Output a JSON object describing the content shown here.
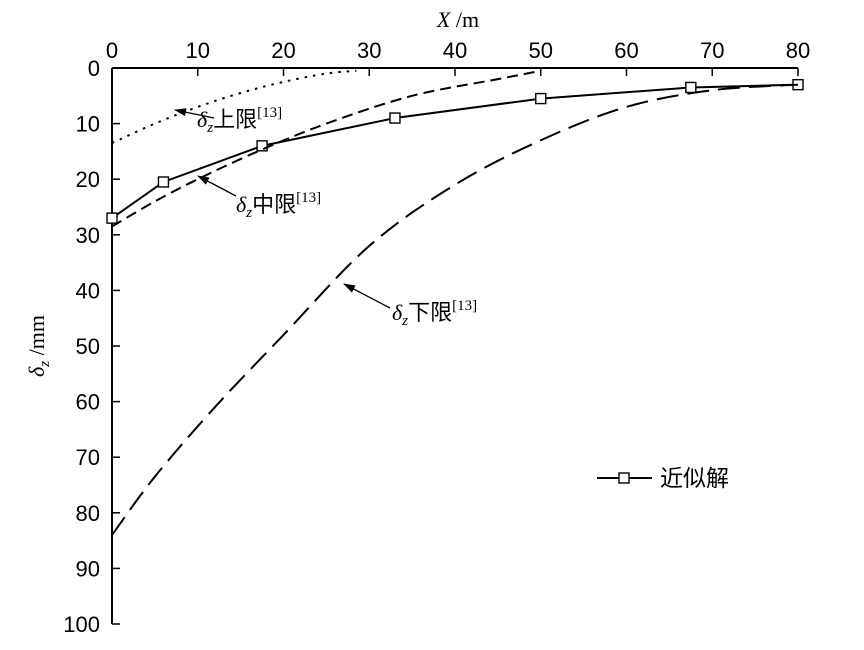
{
  "chart_data": {
    "type": "line",
    "x_axis": {
      "label_var": "X",
      "label_unit": "/m",
      "position": "top",
      "range": [
        0,
        80
      ],
      "ticks": [
        0,
        10,
        20,
        30,
        40,
        50,
        60,
        70,
        80
      ],
      "tick_labels": [
        "0",
        "10",
        "20",
        "30",
        "40",
        "50",
        "60",
        "70",
        "80"
      ]
    },
    "y_axis": {
      "label_var": "δ",
      "label_sub": "z",
      "label_unit": "/mm",
      "inverted": true,
      "range": [
        0,
        100
      ],
      "ticks": [
        0,
        10,
        20,
        30,
        40,
        50,
        60,
        70,
        80,
        90,
        100
      ],
      "tick_labels": [
        "0",
        "10",
        "20",
        "30",
        "40",
        "50",
        "60",
        "70",
        "80",
        "90",
        "100"
      ]
    },
    "grid": false,
    "series": [
      {
        "name": "近似解",
        "style": "solid-square-markers",
        "x": [
          0,
          6,
          17.5,
          33,
          50,
          67.5,
          80
        ],
        "y": [
          27,
          20.5,
          14,
          9,
          5.5,
          3.5,
          3
        ]
      },
      {
        "style": "dotted",
        "x": [
          0,
          5,
          10,
          15,
          20,
          25,
          28.5
        ],
        "y": [
          13.5,
          10,
          7,
          4.5,
          2.5,
          1,
          0.5
        ]
      },
      {
        "style": "short-dash",
        "x": [
          0,
          5,
          10,
          17,
          25,
          35,
          45,
          50
        ],
        "y": [
          28.5,
          24,
          20,
          15,
          10,
          5,
          2,
          0.5
        ]
      },
      {
        "style": "long-dash",
        "x": [
          0,
          5,
          12,
          20,
          30,
          40,
          50,
          60,
          70,
          80
        ],
        "y": [
          84,
          73.5,
          61,
          48,
          32,
          21,
          13,
          7,
          4,
          3
        ]
      }
    ],
    "annotations": [
      {
        "delta": "δ",
        "sub": "z",
        "text": "上限",
        "ref": "[13]"
      },
      {
        "delta": "δ",
        "sub": "z",
        "text": "中限",
        "ref": "[13]"
      },
      {
        "delta": "δ",
        "sub": "z",
        "text": "下限",
        "ref": "[13]"
      }
    ],
    "legend": {
      "position": "lower-right",
      "entries": [
        "近似解"
      ]
    }
  }
}
